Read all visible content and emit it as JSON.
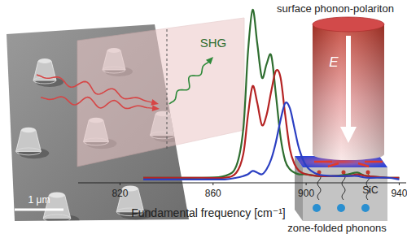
{
  "chart_data": {
    "type": "line",
    "x_label": "Fundamental frequency [cm⁻¹]",
    "x": [
      830,
      855,
      865,
      870,
      873,
      875,
      877,
      879,
      881,
      883,
      885,
      887,
      889,
      891,
      893,
      895,
      897,
      900,
      905,
      912,
      918,
      922,
      926,
      935,
      940
    ],
    "series": [
      {
        "color": "#2f6e30",
        "values": [
          0.01,
          0.01,
          0.02,
          0.08,
          0.3,
          0.75,
          1.0,
          0.8,
          0.6,
          0.68,
          0.73,
          0.5,
          0.25,
          0.11,
          0.06,
          0.04,
          0.03,
          0.03,
          0.02,
          0.02,
          0.03,
          0.04,
          0.02,
          0.01,
          0.01
        ]
      },
      {
        "color": "#b52424",
        "values": [
          0.01,
          0.01,
          0.01,
          0.04,
          0.15,
          0.38,
          0.55,
          0.45,
          0.32,
          0.38,
          0.52,
          0.64,
          0.6,
          0.38,
          0.18,
          0.09,
          0.05,
          0.03,
          0.02,
          0.02,
          0.02,
          0.03,
          0.02,
          0.01,
          0.01
        ]
      },
      {
        "color": "#2b3fc2",
        "values": [
          0.0,
          0.0,
          0.0,
          0.01,
          0.02,
          0.03,
          0.05,
          0.04,
          0.03,
          0.06,
          0.12,
          0.22,
          0.35,
          0.45,
          0.42,
          0.3,
          0.18,
          0.08,
          0.03,
          0.02,
          0.02,
          0.02,
          0.01,
          0.01,
          0.0
        ]
      }
    ],
    "xlim": [
      802,
      943
    ],
    "xticks": [
      820,
      860,
      900,
      940
    ],
    "ylim": [
      -0.02,
      1
    ],
    "tick_labels": "x",
    "annotations": [
      "SHG",
      "surface phonon-polariton",
      "E",
      "zone-folded phonons",
      "SiC",
      "1 μm"
    ]
  }
}
